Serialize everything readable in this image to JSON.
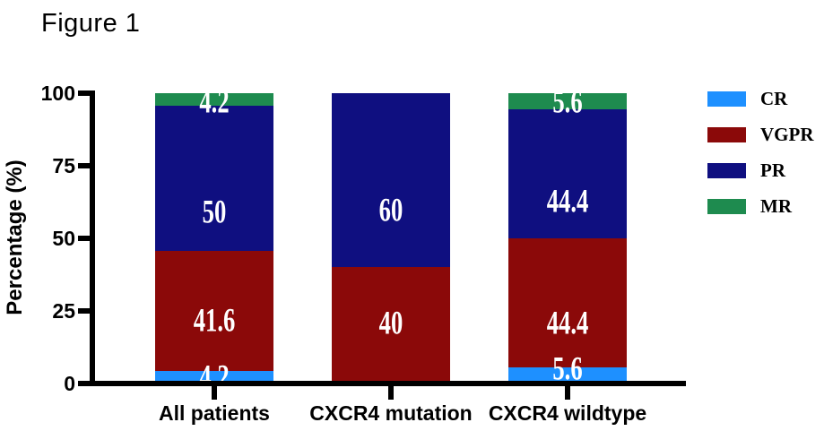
{
  "figure_label": "Figure 1",
  "chart_data": {
    "type": "bar",
    "variant": "stacked-percentage",
    "title": "Figure 1",
    "xlabel": "",
    "ylabel": "Percentage (%)",
    "ylim": [
      0,
      100
    ],
    "yticks": [
      0,
      25,
      50,
      75,
      100
    ],
    "grid": false,
    "categories": [
      "All patients",
      "CXCR4 mutation",
      "CXCR4 wildtype"
    ],
    "stack_order": "series listed bottom to top",
    "series": [
      {
        "name": "CR",
        "color": "#1E90FF",
        "values": [
          4.2,
          0,
          5.6
        ],
        "labels": [
          "4.2",
          null,
          "5.6"
        ],
        "label_pct": [
          2.2,
          null,
          5.0
        ]
      },
      {
        "name": "VGPR",
        "color": "#8B0909",
        "values": [
          41.6,
          40,
          44.4
        ],
        "labels": [
          "41.6",
          "40",
          "44.4"
        ],
        "label_pct": [
          21.6,
          20.7,
          20.7
        ]
      },
      {
        "name": "PR",
        "color": "#0F0F80",
        "values": [
          50,
          60,
          44.4
        ],
        "labels": [
          "50",
          "60",
          "44.4"
        ],
        "label_pct": [
          59.0,
          59.5,
          62.7
        ]
      },
      {
        "name": "MR",
        "color": "#1E8B4F",
        "values": [
          4.2,
          0,
          5.6
        ],
        "labels": [
          "4.2",
          null,
          "5.6"
        ],
        "label_pct": [
          96.9,
          null,
          96.9
        ]
      }
    ],
    "value_label_color": "#FFFFFF",
    "axis_color": "#000000",
    "legend": {
      "position": "right",
      "entries": [
        "CR",
        "VGPR",
        "PR",
        "MR"
      ]
    }
  }
}
